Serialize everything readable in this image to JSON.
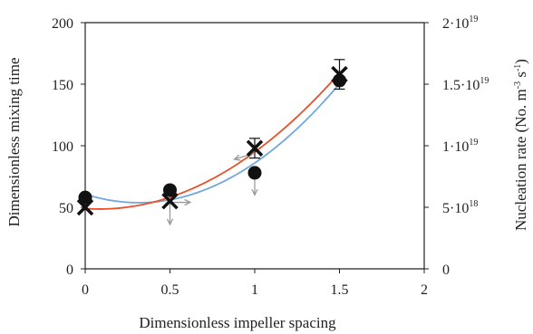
{
  "chart_data": {
    "type": "scatter",
    "xlabel": "Dimensionless impeller spacing",
    "ylabel": "Dimensionless mixing time",
    "y2label": {
      "main": "Nucleation rate (No. m",
      "exp1": "-3",
      "mid": " s",
      "exp2": "-1",
      "end": ")"
    },
    "xlim": [
      0,
      2
    ],
    "ylim": [
      0,
      200
    ],
    "y2lim": [
      0,
      2e+19
    ],
    "x_ticks": [
      "0",
      "0.5",
      "1",
      "1.5",
      "2"
    ],
    "y_ticks": [
      "0",
      "50",
      "100",
      "150",
      "200"
    ],
    "y2_ticks": [
      {
        "base": "0",
        "exp": ""
      },
      {
        "base": "5·10",
        "exp": "18"
      },
      {
        "base": "1·10",
        "exp": "19"
      },
      {
        "base": "1.5·10",
        "exp": "19"
      },
      {
        "base": "2·10",
        "exp": "19"
      }
    ],
    "grid": false,
    "series": [
      {
        "marker": "circle",
        "axis": "left",
        "x": [
          0,
          0.5,
          1,
          1.5
        ],
        "values": [
          58,
          64,
          78,
          153
        ],
        "fit_color": "#6fa8dc"
      },
      {
        "marker": "cross",
        "axis": "left",
        "x": [
          0,
          0.5,
          1,
          1.5
        ],
        "values": [
          50,
          55,
          98,
          158
        ],
        "error": [
          0,
          0,
          8,
          12
        ],
        "fit_color": "#e8502a"
      }
    ],
    "annotations": [
      {
        "type": "arrow",
        "from": [
          0.5,
          54
        ],
        "to": [
          0.5,
          36
        ]
      },
      {
        "type": "arrow",
        "from": [
          0.5,
          54
        ],
        "to": [
          0.62,
          54
        ]
      },
      {
        "type": "arrow",
        "from": [
          1,
          77
        ],
        "to": [
          1,
          60
        ]
      },
      {
        "type": "arrow",
        "from": [
          1,
          94
        ],
        "to": [
          0.88,
          89
        ]
      }
    ]
  },
  "colors": {
    "axis": "#222222",
    "marker": "#111111",
    "arrow": "#999999"
  }
}
